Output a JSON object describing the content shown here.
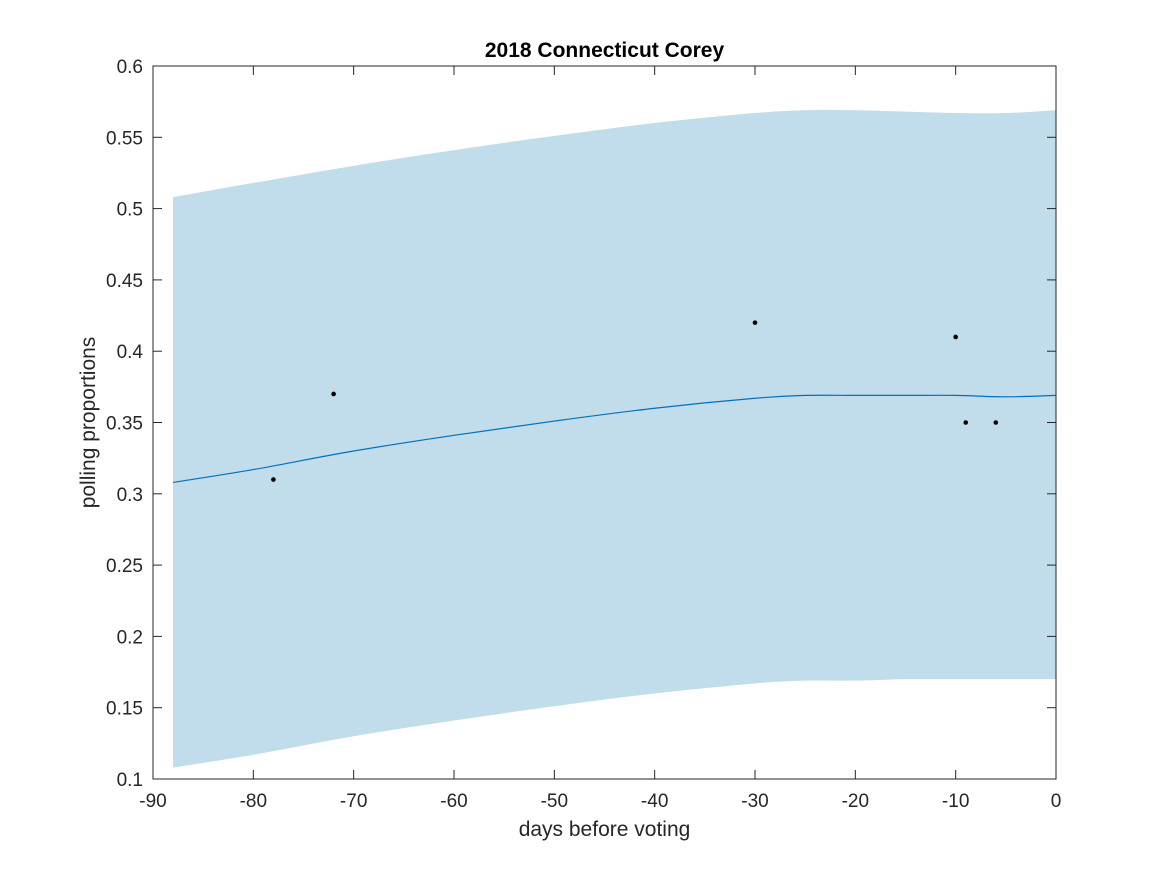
{
  "chart_data": {
    "type": "line",
    "title": "2018 Connecticut Corey",
    "xlabel": "days before voting",
    "ylabel": "polling proportions",
    "xlim": [
      -90,
      0
    ],
    "ylim": [
      0.1,
      0.6
    ],
    "xticks": [
      -90,
      -80,
      -70,
      -60,
      -50,
      -40,
      -30,
      -20,
      -10,
      0
    ],
    "xtick_labels": [
      "-90",
      "-80",
      "-70",
      "-60",
      "-50",
      "-40",
      "-30",
      "-20",
      "-10",
      "0"
    ],
    "yticks": [
      0.1,
      0.15,
      0.2,
      0.25,
      0.3,
      0.35,
      0.4,
      0.45,
      0.5,
      0.55,
      0.6
    ],
    "ytick_labels": [
      "0.1",
      "0.15",
      "0.2",
      "0.25",
      "0.3",
      "0.35",
      "0.4",
      "0.45",
      "0.5",
      "0.55",
      "0.6"
    ],
    "grid": false,
    "colors": {
      "band": "#c1dcea",
      "line": "#0072bd",
      "points": "#000000",
      "axes": "#262626"
    },
    "trend": {
      "name": "fitted trend",
      "x": [
        -88,
        -80,
        -70,
        -60,
        -50,
        -40,
        -30,
        -25,
        -20,
        -15,
        -10,
        -5,
        0
      ],
      "mean": [
        0.308,
        0.317,
        0.33,
        0.341,
        0.351,
        0.36,
        0.367,
        0.369,
        0.369,
        0.369,
        0.369,
        0.368,
        0.369
      ],
      "upper": [
        0.508,
        0.518,
        0.53,
        0.541,
        0.551,
        0.56,
        0.567,
        0.569,
        0.569,
        0.568,
        0.567,
        0.567,
        0.569
      ],
      "lower": [
        0.108,
        0.117,
        0.13,
        0.141,
        0.151,
        0.16,
        0.167,
        0.169,
        0.169,
        0.17,
        0.17,
        0.17,
        0.17
      ]
    },
    "polls": {
      "name": "polls",
      "x": [
        -78,
        -72,
        -30,
        -10,
        -9,
        -6
      ],
      "y": [
        0.31,
        0.37,
        0.42,
        0.41,
        0.35,
        0.35
      ]
    }
  }
}
